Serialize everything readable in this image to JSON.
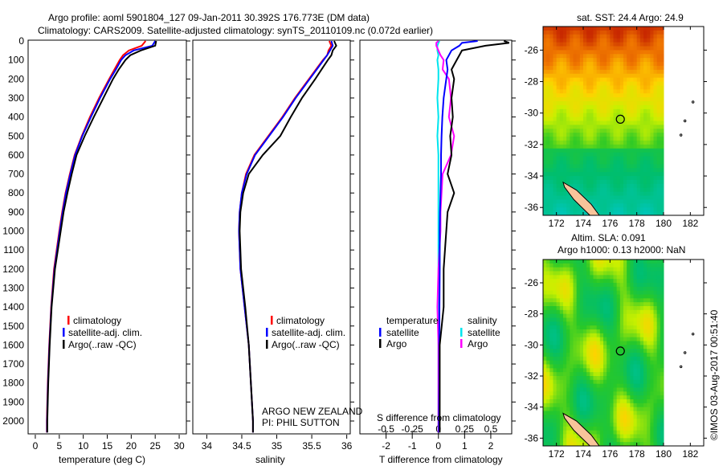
{
  "title_line1": "Argo profile: aoml 5901804_127 09-Jan-2011 30.392S 176.773E (DM data)",
  "title_line2": "Climatology: CARS2009. Satellite-adjusted climatology: synTS_20110109.nc (0.072d earlier)",
  "colors": {
    "climatology": "#ff0000",
    "satellite": "#0000ff",
    "argo": "#000000",
    "sal_satellite": "#00e5ee",
    "sal_argo": "#ff00ff"
  },
  "depth_ticks": [
    0,
    100,
    200,
    300,
    400,
    500,
    600,
    700,
    800,
    900,
    1000,
    1100,
    1200,
    1300,
    1400,
    1500,
    1600,
    1700,
    1800,
    1900,
    2000
  ],
  "legend": {
    "climatology": "climatology",
    "satellite": "satellite-adj. clim.",
    "argo": "Argo(..raw -QC)"
  },
  "diff_legend": {
    "temperature": "temperature",
    "salinity": "salinity",
    "satellite": "satellite",
    "argo": "Argo"
  },
  "annotation": {
    "line1": "ARGO NEW ZEALAND",
    "line2": "PI: PHIL SUTTON"
  },
  "chart_data": [
    {
      "type": "line",
      "xlabel": "temperature (deg C)",
      "ylabel": "depth",
      "xlim": [
        -1.5,
        31.5
      ],
      "ylim": [
        2070,
        0
      ],
      "xticks": [
        0,
        5,
        10,
        15,
        20,
        25,
        30
      ],
      "depth": [
        0,
        25,
        50,
        75,
        100,
        150,
        200,
        300,
        400,
        500,
        600,
        700,
        800,
        900,
        1000,
        1200,
        1400,
        1600,
        1800,
        2000,
        2060
      ],
      "series": [
        {
          "name": "climatology",
          "values": [
            23,
            22.2,
            19.5,
            18.3,
            17.6,
            16.5,
            15.4,
            13.3,
            11.4,
            9.7,
            8.2,
            7.2,
            6.3,
            5.6,
            5.0,
            3.9,
            3.3,
            2.9,
            2.6,
            2.4,
            2.4
          ]
        },
        {
          "name": "satellite-adj. clim.",
          "values": [
            25,
            24.4,
            20.5,
            18.8,
            17.9,
            16.8,
            15.6,
            13.5,
            11.6,
            9.8,
            8.3,
            7.3,
            6.4,
            5.7,
            5.1,
            4.0,
            3.35,
            2.95,
            2.65,
            2.45,
            2.45
          ]
        },
        {
          "name": "Argo(..raw -QC)",
          "values": [
            25.2,
            25,
            22,
            19.8,
            18.8,
            17.4,
            16.2,
            14.2,
            12.2,
            10.3,
            8.6,
            7.6,
            6.7,
            5.9,
            5.3,
            4.1,
            3.4,
            3.0,
            2.7,
            2.5,
            2.5
          ]
        }
      ]
    },
    {
      "type": "line",
      "xlabel": "salinity",
      "ylabel": "depth",
      "xlim": [
        33.8,
        36.05
      ],
      "ylim": [
        2070,
        0
      ],
      "xticks": [
        34,
        34.5,
        35,
        35.5,
        36
      ],
      "depth": [
        0,
        25,
        50,
        75,
        100,
        150,
        200,
        300,
        400,
        500,
        600,
        700,
        800,
        900,
        1000,
        1200,
        1400,
        1600,
        1800,
        2000,
        2060
      ],
      "series": [
        {
          "name": "climatology",
          "values": [
            35.75,
            35.78,
            35.74,
            35.72,
            35.66,
            35.56,
            35.46,
            35.26,
            35.08,
            34.88,
            34.68,
            34.56,
            34.5,
            34.47,
            34.46,
            34.48,
            34.54,
            34.6,
            34.63,
            34.66,
            34.66
          ]
        },
        {
          "name": "satellite-adj. clim.",
          "values": [
            35.78,
            35.8,
            35.76,
            35.72,
            35.67,
            35.57,
            35.47,
            35.27,
            35.09,
            34.89,
            34.69,
            34.57,
            34.5,
            34.47,
            34.46,
            34.48,
            34.54,
            34.6,
            34.63,
            34.66,
            34.66
          ]
        },
        {
          "name": "Argo(..raw -QC)",
          "values": [
            35.82,
            35.85,
            35.8,
            35.78,
            35.73,
            35.64,
            35.55,
            35.36,
            35.2,
            35.05,
            34.8,
            34.6,
            34.52,
            34.48,
            34.47,
            34.49,
            34.55,
            34.6,
            34.63,
            34.66,
            34.66
          ]
        }
      ]
    },
    {
      "type": "line",
      "xlabel": "T difference from climatology",
      "x2label": "S difference from climatology",
      "ylabel": "depth",
      "xlim": [
        -3,
        2.8
      ],
      "x2lim": [
        -0.75,
        0.7
      ],
      "ylim": [
        2070,
        0
      ],
      "xticks": [
        -2,
        -1,
        0,
        1,
        2
      ],
      "x2ticks": [
        -0.5,
        -0.25,
        0,
        0.25,
        0.5
      ],
      "x2ticklabels": [
        "-0.5",
        "-0.25",
        "0",
        "0.25",
        "0.5"
      ],
      "depth": [
        0,
        10,
        25,
        50,
        75,
        100,
        150,
        200,
        300,
        400,
        500,
        600,
        700,
        800,
        900,
        1000,
        1200,
        1400,
        1600,
        1800,
        2000,
        2060
      ],
      "series": [
        {
          "name": "temperature satellite",
          "axis": "T",
          "values": [
            1.5,
            0.9,
            0.8,
            0.5,
            0.4,
            0.3,
            0.35,
            0.3,
            0.2,
            0.15,
            0.12,
            0.1,
            0.1,
            0.08,
            0.06,
            0.05,
            0.05,
            0.04,
            0.03,
            0.03,
            0.02,
            0.02
          ]
        },
        {
          "name": "temperature Argo",
          "axis": "T",
          "values": [
            2.5,
            2.7,
            1.8,
            0.9,
            0.8,
            0.7,
            0.5,
            0.6,
            0.5,
            0.55,
            0.45,
            0.5,
            0.35,
            0.6,
            0.35,
            0.3,
            0.2,
            0.2,
            0.05,
            0.05,
            0.05,
            0.05
          ]
        },
        {
          "name": "salinity satellite",
          "axis": "S",
          "values": [
            0.01,
            0.0,
            -0.01,
            -0.01,
            0.0,
            -0.01,
            0.0,
            0.0,
            -0.01,
            0.0,
            -0.01,
            0.0,
            0.0,
            0.0,
            0.0,
            0.0,
            0.0,
            0.0,
            0.0,
            0.0,
            0.0,
            0.0
          ]
        },
        {
          "name": "salinity Argo",
          "axis": "S",
          "values": [
            0.0,
            -0.02,
            -0.02,
            0.0,
            0.02,
            0.05,
            0.04,
            0.1,
            0.12,
            0.1,
            0.15,
            0.12,
            0.04,
            0.03,
            0.02,
            0.02,
            0.0,
            -0.01,
            0.0,
            0.0,
            0.0,
            0.0
          ]
        }
      ]
    },
    {
      "type": "heatmap",
      "title": "sat. SST: 24.4 Argo: 24.9",
      "xlim": [
        171,
        183
      ],
      "ylim": [
        -36.5,
        -24.5
      ],
      "xticks": [
        172,
        174,
        176,
        178,
        180,
        182
      ],
      "yticks": [
        -26,
        -28,
        -30,
        -32,
        -34,
        -36
      ],
      "marker": {
        "lon": 176.773,
        "lat": -30.392
      }
    },
    {
      "type": "heatmap",
      "title": "Altim. SLA: 0.091",
      "subtitle": "Argo h1000: 0.13 h2000: NaN",
      "xlim": [
        171,
        183
      ],
      "ylim": [
        -36.5,
        -24.5
      ],
      "xticks": [
        172,
        174,
        176,
        178,
        180,
        182
      ],
      "yticks": [
        -26,
        -28,
        -30,
        -32,
        -34,
        -36
      ],
      "marker": {
        "lon": 176.773,
        "lat": -30.392
      }
    }
  ],
  "credit": "©IMOS 03-Aug-2017 00:51:40"
}
